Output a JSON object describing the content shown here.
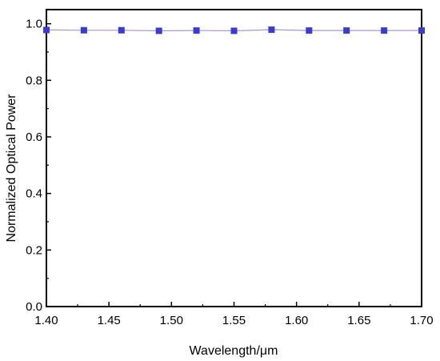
{
  "chart_data": {
    "type": "line",
    "title": "",
    "xlabel": "Wavelength/μm",
    "ylabel": "Normalized Optical Power",
    "xlim": [
      1.4,
      1.7
    ],
    "ylim": [
      0.0,
      1.05
    ],
    "xticks": [
      1.4,
      1.45,
      1.5,
      1.55,
      1.6,
      1.65,
      1.7
    ],
    "xtick_labels": [
      "1.40",
      "1.45",
      "1.50",
      "1.55",
      "1.60",
      "1.65",
      "1.70"
    ],
    "yticks": [
      0.0,
      0.2,
      0.4,
      0.6,
      0.8,
      1.0
    ],
    "ytick_labels": [
      "0.0",
      "0.2",
      "0.4",
      "0.6",
      "0.8",
      "1.0"
    ],
    "grid": false,
    "marker": "square",
    "series_color": "#3b3bd0",
    "line_color": "#9a9ae8",
    "series": [
      {
        "x": [
          1.4,
          1.43,
          1.46,
          1.49,
          1.52,
          1.55,
          1.58,
          1.61,
          1.64,
          1.67,
          1.7
        ],
        "y": [
          0.978,
          0.977,
          0.977,
          0.975,
          0.976,
          0.975,
          0.979,
          0.976,
          0.976,
          0.976,
          0.976
        ]
      }
    ]
  }
}
